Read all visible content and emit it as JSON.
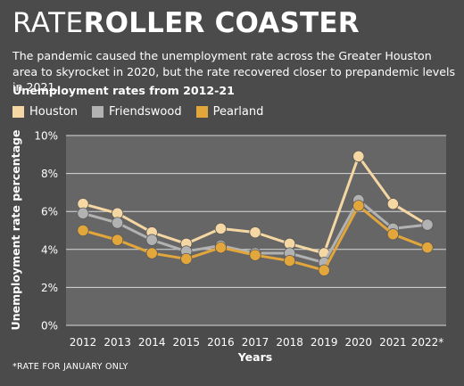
{
  "header": {
    "title_light": "RATE",
    "title_bold": "ROLLER COASTER",
    "subtitle": "The pandemic caused the unemployment rate across the Greater Houston area to skyrocket in 2020, but the rate recovered closer to prepandemic levels in 2021.",
    "chart_heading": "Unemployment rates from 2012-21"
  },
  "footnote": "*RATE FOR JANUARY ONLY",
  "chart_data": {
    "type": "line",
    "title": "Unemployment rates from 2012-21",
    "xlabel": "Years",
    "ylabel": "Unemployment rate percentage",
    "categories": [
      "2012",
      "2013",
      "2014",
      "2015",
      "2016",
      "2017",
      "2018",
      "2019",
      "2020",
      "2021",
      "2022*"
    ],
    "y_ticks": [
      0,
      2,
      4,
      6,
      8,
      10
    ],
    "y_tick_labels": [
      "0%",
      "2%",
      "4%",
      "6%",
      "8%",
      "10%"
    ],
    "ylim": [
      0,
      10
    ],
    "grid": true,
    "legend_position": "top-left",
    "series": [
      {
        "name": "Houston",
        "color": "#f5d7a3",
        "values": [
          6.4,
          5.9,
          4.9,
          4.3,
          5.1,
          4.9,
          4.3,
          3.8,
          8.9,
          6.4,
          5.3
        ]
      },
      {
        "name": "Friendswood",
        "color": "#b2b2b2",
        "values": [
          5.9,
          5.4,
          4.5,
          3.9,
          4.2,
          3.8,
          3.8,
          3.3,
          6.6,
          5.1,
          5.3
        ]
      },
      {
        "name": "Pearland",
        "color": "#e2a63b",
        "values": [
          5.0,
          4.5,
          3.8,
          3.5,
          4.1,
          3.7,
          3.4,
          2.9,
          6.3,
          4.8,
          4.1
        ]
      }
    ]
  }
}
